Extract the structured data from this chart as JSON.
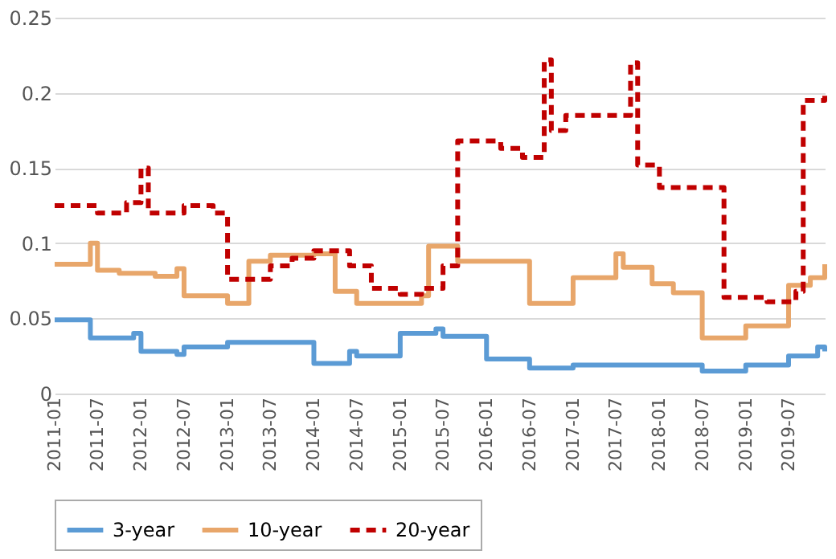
{
  "chart_data": {
    "type": "step",
    "xlim": [
      "2011-01",
      "2019-12"
    ],
    "xticks": [
      "2011-01",
      "2011-07",
      "2012-01",
      "2012-07",
      "2013-01",
      "2013-07",
      "2014-01",
      "2014-07",
      "2015-01",
      "2015-07",
      "2016-01",
      "2016-07",
      "2017-01",
      "2017-07",
      "2018-01",
      "2018-07",
      "2019-01",
      "2019-07"
    ],
    "ylim": [
      0,
      0.25
    ],
    "yticks": [
      0,
      0.05,
      0.1,
      0.15,
      0.2,
      0.25
    ],
    "grid": "y",
    "legend": "bottom",
    "series": [
      {
        "name": "3-year",
        "color": "#5b9bd5",
        "line_style": "solid",
        "x": [
          "2011-01",
          "2011-06",
          "2011-12",
          "2012-01",
          "2012-06",
          "2012-07",
          "2013-01",
          "2014-01",
          "2014-06",
          "2014-07",
          "2015-01",
          "2015-06",
          "2015-07",
          "2016-01",
          "2016-07",
          "2017-01",
          "2018-07",
          "2019-01",
          "2019-07",
          "2019-11",
          "2019-12"
        ],
        "values": [
          0.049,
          0.037,
          0.04,
          0.028,
          0.026,
          0.031,
          0.034,
          0.02,
          0.028,
          0.025,
          0.04,
          0.043,
          0.038,
          0.023,
          0.017,
          0.019,
          0.015,
          0.019,
          0.025,
          0.031,
          0.028
        ]
      },
      {
        "name": "10-year",
        "color": "#e8a66a",
        "line_style": "solid",
        "x": [
          "2011-01",
          "2011-06",
          "2011-07",
          "2011-10",
          "2012-03",
          "2012-06",
          "2012-07",
          "2013-01",
          "2013-04",
          "2013-07",
          "2014-01",
          "2014-04",
          "2014-07",
          "2015-04",
          "2015-05",
          "2015-09",
          "2016-07",
          "2017-01",
          "2017-07",
          "2017-08",
          "2017-12",
          "2018-03",
          "2018-07",
          "2019-01",
          "2019-07",
          "2019-10",
          "2019-12"
        ],
        "values": [
          0.086,
          0.1,
          0.082,
          0.08,
          0.078,
          0.083,
          0.065,
          0.06,
          0.088,
          0.092,
          0.093,
          0.068,
          0.06,
          0.065,
          0.098,
          0.088,
          0.06,
          0.077,
          0.093,
          0.084,
          0.073,
          0.067,
          0.037,
          0.045,
          0.072,
          0.077,
          0.086
        ]
      },
      {
        "name": "20-year",
        "color": "#c00000",
        "line_style": "dashed",
        "x": [
          "2011-01",
          "2011-07",
          "2011-11",
          "2012-01",
          "2012-02",
          "2012-07",
          "2012-11",
          "2013-01",
          "2013-07",
          "2013-10",
          "2014-01",
          "2014-06",
          "2014-09",
          "2015-01",
          "2015-04",
          "2015-07",
          "2015-09",
          "2016-03",
          "2016-06",
          "2016-09",
          "2016-10",
          "2016-12",
          "2017-09",
          "2017-10",
          "2018-01",
          "2018-10",
          "2019-04",
          "2019-08",
          "2019-09",
          "2019-12"
        ],
        "values": [
          0.125,
          0.12,
          0.127,
          0.15,
          0.12,
          0.125,
          0.12,
          0.076,
          0.085,
          0.09,
          0.095,
          0.085,
          0.07,
          0.066,
          0.07,
          0.085,
          0.168,
          0.163,
          0.157,
          0.222,
          0.175,
          0.185,
          0.22,
          0.152,
          0.137,
          0.064,
          0.061,
          0.068,
          0.195,
          0.198
        ]
      }
    ]
  }
}
